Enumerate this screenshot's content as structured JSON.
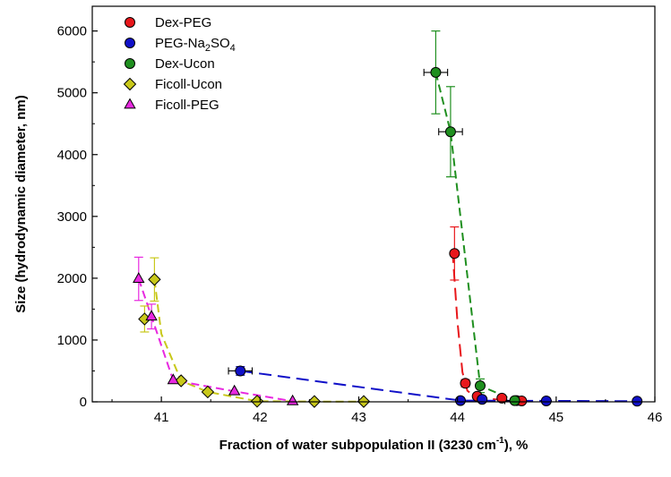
{
  "chart_data": {
    "type": "scatter",
    "xlabel": "Fraction of water subpopulation II (3230 cm",
    "xlabel_sup": "-1",
    "xlabel_tail": "), %",
    "ylabel": "Size (hydrodynamic diameter, nm)",
    "xlim": [
      40.3,
      46
    ],
    "ylim": [
      0,
      6400
    ],
    "x_ticks": [
      41,
      42,
      43,
      44,
      45,
      46
    ],
    "y_ticks": [
      0,
      1000,
      2000,
      3000,
      4000,
      5000,
      6000
    ],
    "legend_position": "top-left",
    "series": [
      {
        "name": "Dex-PEG",
        "color": "#e8171b",
        "marker": "circle",
        "points": [
          {
            "x": 43.97,
            "y": 2400,
            "yerr": 430
          },
          {
            "x": 44.08,
            "y": 300,
            "yerr": 60
          },
          {
            "x": 44.2,
            "y": 90,
            "yerr": 20
          },
          {
            "x": 44.45,
            "y": 60,
            "yerr": 15
          },
          {
            "x": 44.6,
            "y": 20,
            "yerr": 10
          },
          {
            "x": 44.65,
            "y": 15,
            "yerr": 10
          }
        ]
      },
      {
        "name": "PEG-Na2SO4",
        "name_main": "PEG-Na",
        "name_sub1": "2",
        "name_mid": "SO",
        "name_sub2": "4",
        "color": "#1010c8",
        "marker": "circle",
        "points": [
          {
            "x": 41.8,
            "y": 500,
            "yerr": 70,
            "xerr": 0.12
          },
          {
            "x": 44.03,
            "y": 20
          },
          {
            "x": 44.25,
            "y": 40
          },
          {
            "x": 44.9,
            "y": 15
          },
          {
            "x": 45.82,
            "y": 10
          }
        ]
      },
      {
        "name": "Dex-Ucon",
        "color": "#1f8f1f",
        "marker": "circle",
        "points": [
          {
            "x": 43.78,
            "y": 5330,
            "yerr": 670,
            "xerr": 0.12
          },
          {
            "x": 43.93,
            "y": 4370,
            "yerr": 730,
            "xerr": 0.12
          },
          {
            "x": 44.23,
            "y": 260,
            "yerr": 110
          },
          {
            "x": 44.58,
            "y": 20,
            "xerr": 0.1
          }
        ]
      },
      {
        "name": "Ficoll-Ucon",
        "color": "#c8c81a",
        "marker": "diamond",
        "points": [
          {
            "x": 40.83,
            "y": 1340,
            "yerr": 210
          },
          {
            "x": 40.93,
            "y": 1980,
            "yerr": 350
          },
          {
            "x": 41.2,
            "y": 340
          },
          {
            "x": 41.47,
            "y": 160
          },
          {
            "x": 41.97,
            "y": 10
          },
          {
            "x": 42.55,
            "y": 5
          },
          {
            "x": 43.05,
            "y": 5
          }
        ]
      },
      {
        "name": "Ficoll-PEG",
        "color": "#e829e0",
        "marker": "triangle",
        "points": [
          {
            "x": 40.77,
            "y": 1990,
            "yerr": 350
          },
          {
            "x": 40.9,
            "y": 1380,
            "yerr": 200
          },
          {
            "x": 41.12,
            "y": 350
          },
          {
            "x": 41.74,
            "y": 170
          },
          {
            "x": 42.33,
            "y": 10
          }
        ]
      }
    ],
    "fit_lines": [
      {
        "series": "Dex-PEG",
        "color": "#e8171b",
        "dash": "long",
        "x": [
          43.95,
          44.0,
          44.05,
          44.1,
          44.18,
          44.3,
          44.45,
          44.65
        ],
        "y": [
          2450,
          1300,
          480,
          180,
          80,
          50,
          30,
          10
        ]
      },
      {
        "series": "PEG-Na2SO4",
        "color": "#1010c8",
        "dash": "long",
        "x": [
          41.8,
          44.03,
          45.82
        ],
        "y": [
          500,
          20,
          10
        ]
      },
      {
        "series": "Dex-Ucon",
        "color": "#1f8f1f",
        "dash": "medium",
        "x": [
          43.78,
          43.93,
          44.23,
          44.58
        ],
        "y": [
          5330,
          4370,
          260,
          20
        ]
      },
      {
        "series": "Ficoll-Ucon",
        "color": "#c8c81a",
        "dash": "medium",
        "x": [
          40.93,
          41.0,
          41.2,
          41.47,
          41.97,
          42.55,
          43.05
        ],
        "y": [
          1980,
          1100,
          340,
          160,
          10,
          5,
          5
        ]
      },
      {
        "series": "Ficoll-PEG",
        "color": "#e829e0",
        "dash": "medium",
        "x": [
          40.77,
          40.9,
          41.12,
          41.74,
          42.33
        ],
        "y": [
          1990,
          1380,
          350,
          170,
          10
        ]
      }
    ]
  }
}
